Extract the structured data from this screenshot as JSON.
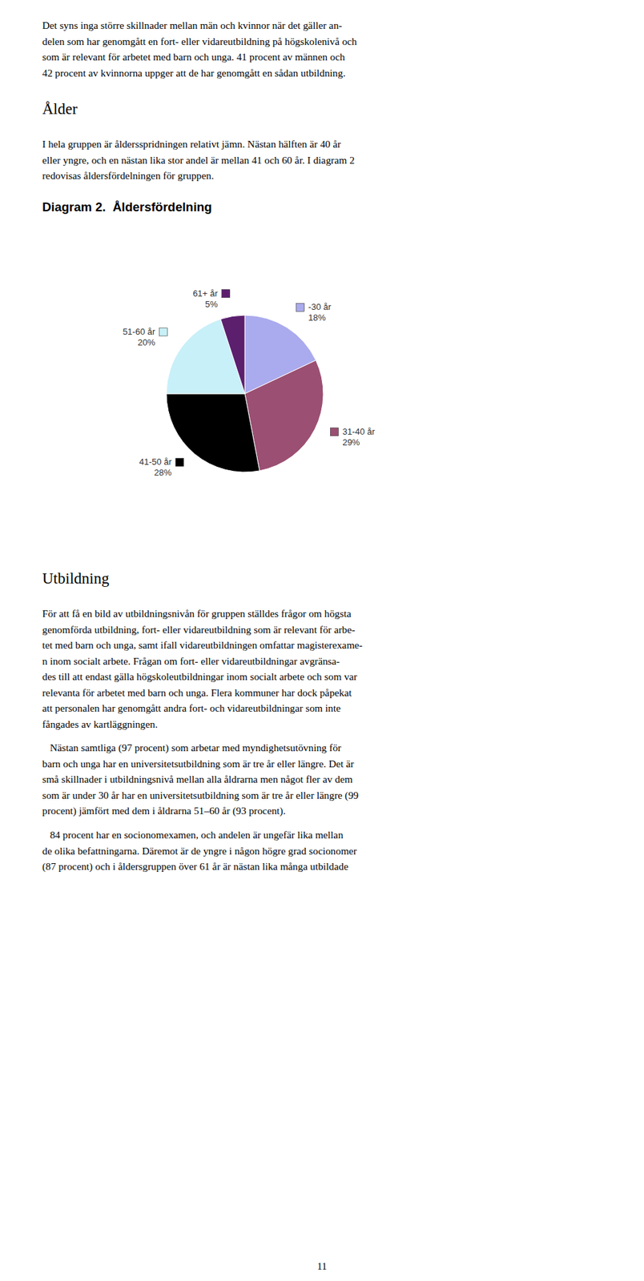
{
  "chart_data": {
    "type": "pie",
    "title": "Diagram 2.  Åldersfördelning",
    "categories": [
      "-30 år",
      "31-40 år",
      "41-50 år",
      "51-60 år",
      "61+ år"
    ],
    "values": [
      18,
      29,
      28,
      20,
      5
    ],
    "value_labels": [
      "18%",
      "29%",
      "28%",
      "20%",
      "5%"
    ],
    "colors": [
      "#aaaaee",
      "#9b4f72",
      "#000000",
      "#c8f0f8",
      "#5b1f6e"
    ],
    "data_labels": true,
    "annotations": [
      [
        "Det syns inga större skillnader mellan män och kvinnor när det gäller an-",
        "delen som har genomgått en fort- eller vidareutbildning på högskolenivå och",
        "som är relevant för arbetet med barn och unga. 41 procent av männen och",
        "42 procent av kvinnorna uppger att de har genomgått en sådan utbildning."
      ],
      [
        "Ålder"
      ],
      [
        "I hela gruppen är åldersspridningen relativt jämn. Nästan hälften är 40 år",
        "eller yngre, och en nästan lika stor andel är mellan 41 och 60 år. I diagram 2",
        "redovisas åldersfördelningen för gruppen."
      ],
      [
        "Utbildning"
      ],
      [
        "För att få en bild av utbildningsnivån för gruppen ställdes frågor om högsta",
        "genomförda utbildning, fort- eller vidareutbildning som är relevant för arbe-",
        "tet med barn och unga, samt ifall vidareutbildningen omfattar magisterexame-",
        "n inom socialt arbete. Frågan om fort- eller vidareutbildningar avgränsa-",
        "des till att endast gälla högskoleutbildningar inom socialt arbete och som var",
        "relevanta för arbetet med barn och unga. Flera kommuner har dock påpekat",
        "att personalen har genomgått andra fort- och vidareutbildningar som inte",
        "fångades av kartläggningen."
      ],
      [
        "   Nästan samtliga (97 procent) som arbetar med myndighetsutövning för",
        "barn och unga har en universitetsutbildning som är tre år eller längre. Det är",
        "små skillnader i utbildningsnivå mellan alla åldrarna men något fler av dem",
        "som är under 30 år har en universitetsutbildning som är tre år eller längre (99",
        "procent) jämfört med dem i åldrarna 51–60 år (93 procent)."
      ],
      [
        "   84 procent har en socionomexamen, och andelen är ungefär lika mellan",
        "de olika befattningarna. Däremot är de yngre i någon högre grad socionomer",
        "(87 procent) och i åldersgruppen över 61 år är nästan lika många utbildade"
      ],
      [
        "11"
      ]
    ]
  }
}
